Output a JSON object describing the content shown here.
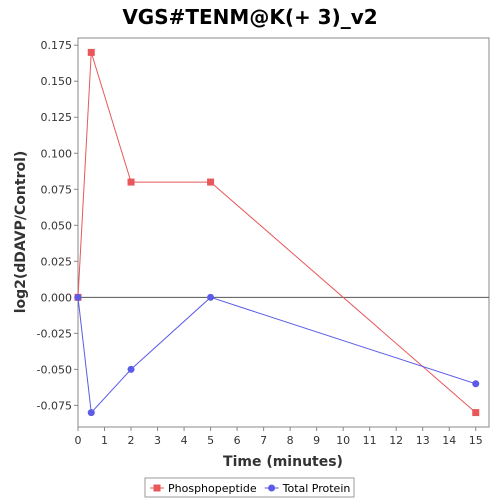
{
  "chart_data": {
    "type": "line",
    "title": "VGS#TENM@K(+ 3)_v2",
    "xlabel": "Time (minutes)",
    "ylabel": "log2(dDAVP/Control)",
    "xlim": [
      0,
      15.5
    ],
    "ylim": [
      -0.09,
      0.18
    ],
    "x_ticks": [
      0,
      1,
      2,
      3,
      4,
      5,
      6,
      7,
      8,
      9,
      10,
      11,
      12,
      13,
      14,
      15
    ],
    "y_ticks": [
      -0.075,
      -0.05,
      -0.025,
      0.0,
      0.025,
      0.05,
      0.075,
      0.1,
      0.125,
      0.15,
      0.175
    ],
    "y_tick_labels": [
      "-0.075",
      "-0.050",
      "-0.025",
      "0.000",
      "0.025",
      "0.050",
      "0.075",
      "0.100",
      "0.125",
      "0.150",
      "0.175"
    ],
    "zero_line": true,
    "grid": false,
    "legend_position": "bottom",
    "series": [
      {
        "name": "Phosphopeptide",
        "color": "#e8575a",
        "marker": "square",
        "x": [
          0,
          0.5,
          2,
          5,
          15
        ],
        "y": [
          0.0,
          0.17,
          0.08,
          0.08,
          -0.08
        ]
      },
      {
        "name": "Total Protein",
        "color": "#5b5be8",
        "marker": "circle",
        "x": [
          0,
          0.5,
          2,
          5,
          15
        ],
        "y": [
          0.0,
          -0.08,
          -0.05,
          0.0,
          -0.06
        ]
      }
    ]
  }
}
